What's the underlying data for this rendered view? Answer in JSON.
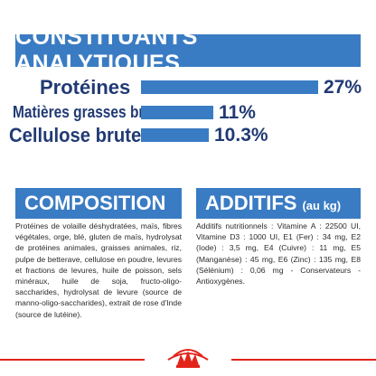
{
  "analytic": {
    "title": "CONSTITUANTS ANALYTIQUES",
    "rows": [
      {
        "label": "Protéines",
        "value": "27%",
        "fraction": 0.27
      },
      {
        "label": "Matières grasses brutes",
        "value": "11%",
        "fraction": 0.11
      },
      {
        "label": "Cellulose brute",
        "value": "10.3%",
        "fraction": 0.103
      }
    ]
  },
  "composition": {
    "title": "COMPOSITION",
    "text": "Protéines de volaille déshydratées, maïs, fibres végétales, orge, blé, gluten de maïs, hydrolysat de protéines animales, graisses animales, riz, pulpe de betterave, cellulose en poudre, levures et fractions de levures, huile de poisson, sels minéraux, huile de soja, fructo-oligo-saccharides, hydrolysat de levure (source de manno-oligo-saccharides), extrait de rose d'Inde (source de lutéine)."
  },
  "additives": {
    "title": "ADDITIFS",
    "subtitle": "(au kg)",
    "text": "Additifs nutritionnels : Vitamine A : 22500 UI, Vitamine D3 : 1000 UI, E1 (Fer) : 34 mg, E2 (Iode) : 3,5 mg, E4 (Cuivre) : 11 mg, E5 (Manganèse) : 45 mg, E6 (Zinc) : 135 mg, E8 (Sélénium) : 0,06 mg - Conservateurs - Antioxygènes."
  },
  "colors": {
    "brand_blue": "#3a7cc3",
    "dark_blue": "#213a74",
    "brand_red": "#e2241b"
  },
  "logo": {
    "icon": "royal-canin-crown-logo"
  }
}
